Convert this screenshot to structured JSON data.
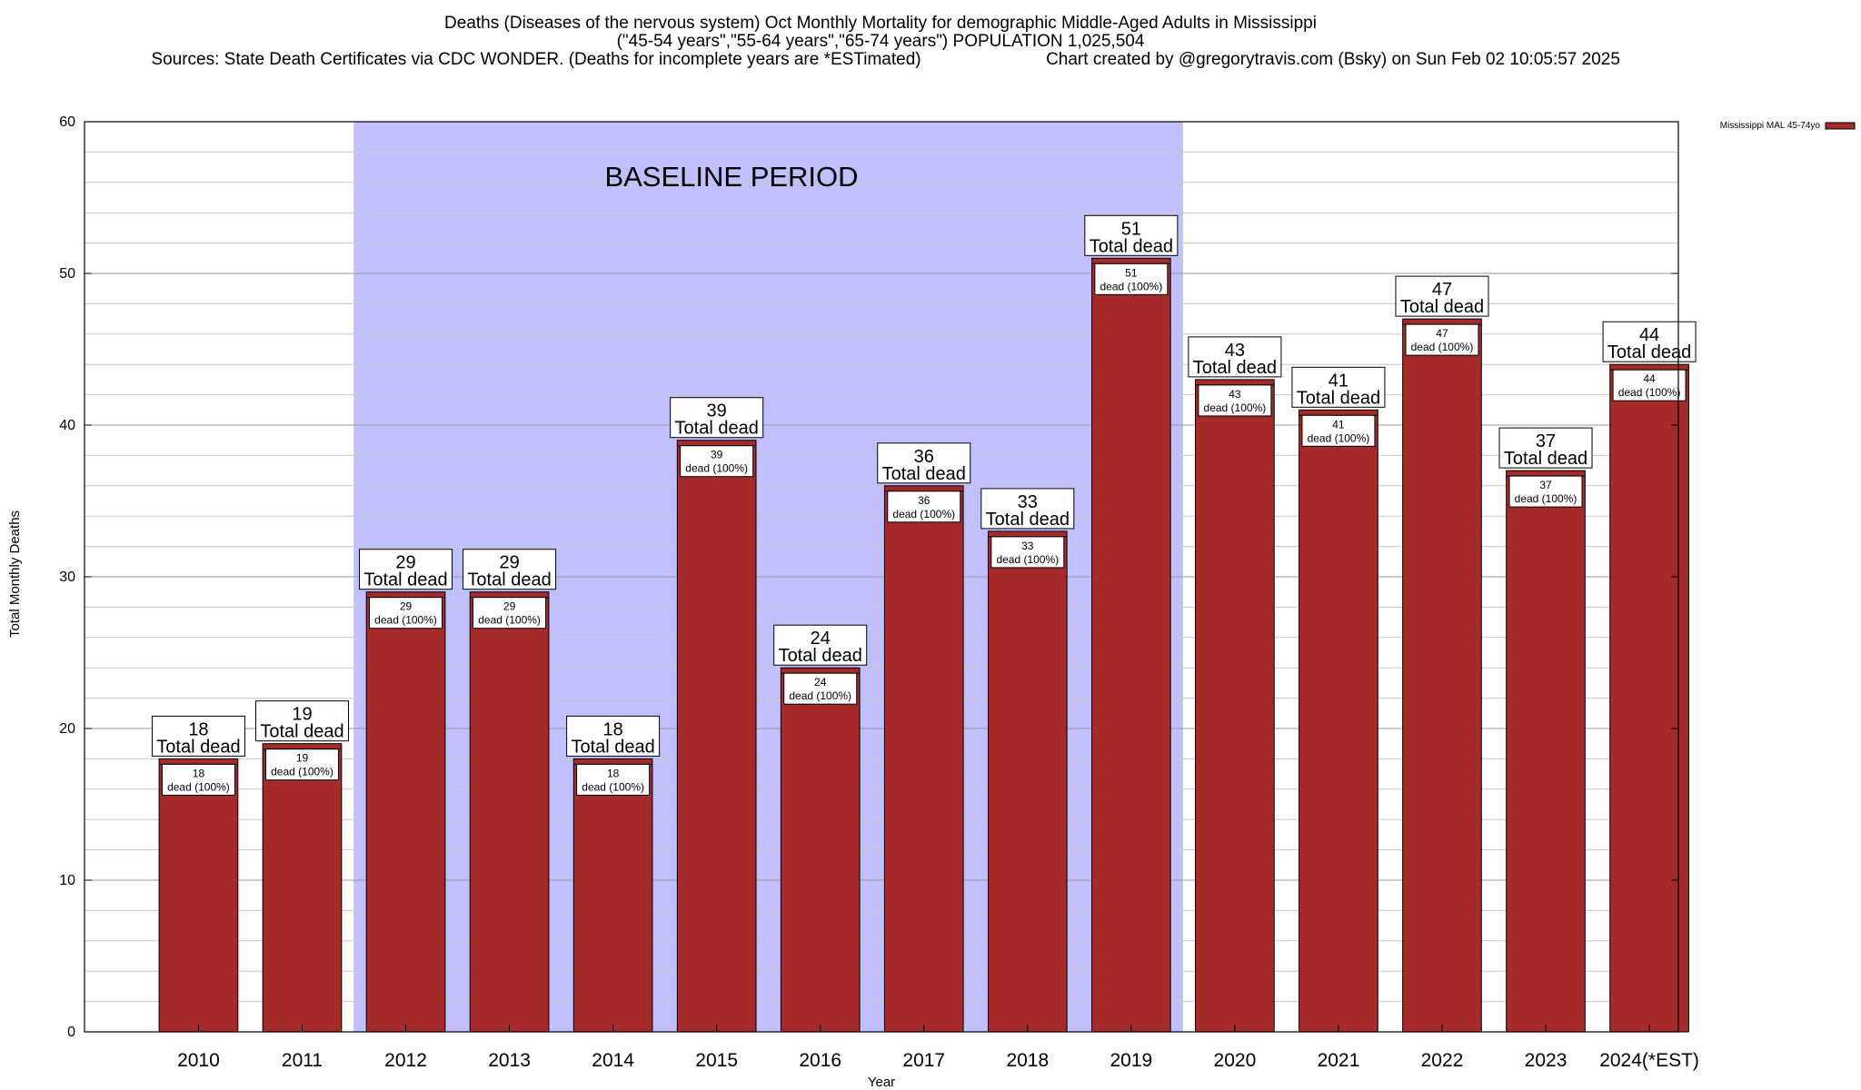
{
  "chart_data": {
    "type": "bar",
    "title_lines": [
      "Deaths (Diseases of the nervous system) Oct Monthly Mortality for demographic Middle-Aged Adults in Mississippi",
      "(\"45-54 years\",\"55-64 years\",\"65-74 years\") POPULATION 1,025,504"
    ],
    "source_text": "Sources: State Death Certificates via CDC WONDER. (Deaths for incomplete years are *ESTimated)",
    "credit_text": "Chart created by @gregorytravis.com (Bsky) on Sun Feb 02 10:05:57 2025",
    "xlabel": "Year",
    "ylabel": "Total Monthly Deaths",
    "ylim": [
      0,
      60
    ],
    "y_ticks": [
      0,
      10,
      20,
      30,
      40,
      50,
      60
    ],
    "grid": true,
    "legend": {
      "placement": "top-right",
      "label": "Mississippi MAL 45-74yo"
    },
    "baseline_period": {
      "label": "BASELINE PERIOD",
      "start": "2012",
      "end": "2019"
    },
    "categories": [
      "2010",
      "2011",
      "2012",
      "2013",
      "2014",
      "2015",
      "2016",
      "2017",
      "2018",
      "2019",
      "2020",
      "2021",
      "2022",
      "2023",
      "2024(*EST)"
    ],
    "values": [
      18,
      19,
      29,
      29,
      18,
      39,
      24,
      36,
      33,
      51,
      43,
      41,
      47,
      37,
      44
    ],
    "top_label_suffix": "Total dead",
    "inner_label_suffix": "dead (100%)",
    "colors": {
      "bar": "#a52a2a",
      "baseline_fill": "#c0c0ff",
      "grid": "#c8c8c8"
    }
  }
}
